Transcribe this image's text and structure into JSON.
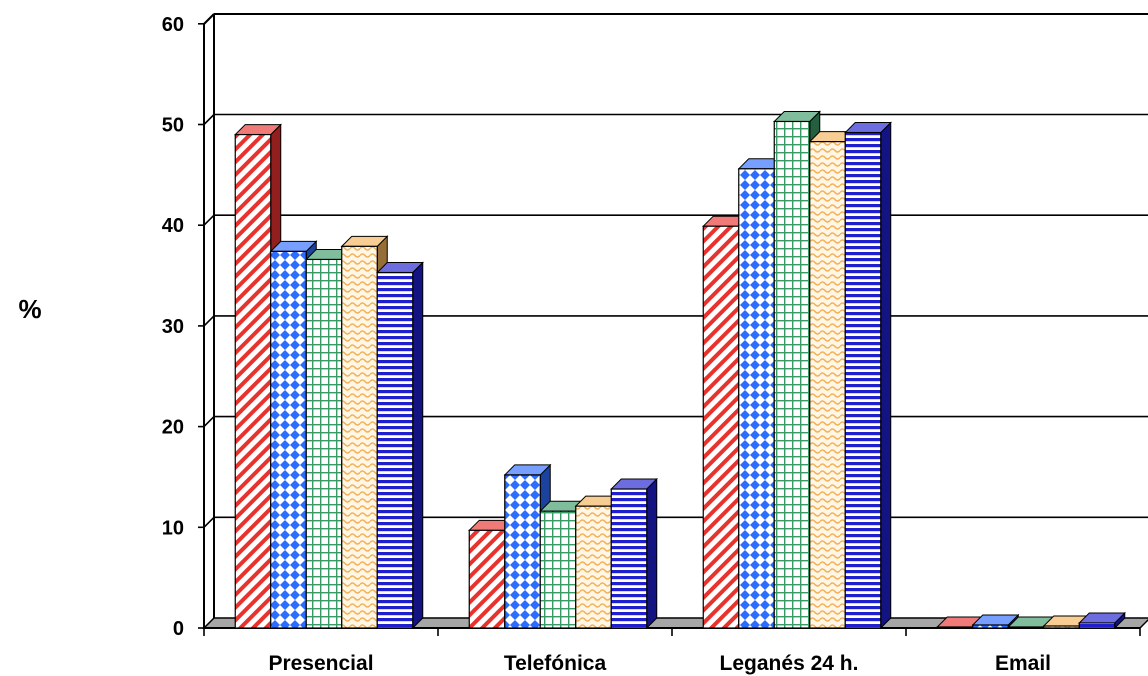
{
  "chart_data": {
    "type": "bar",
    "title": "",
    "xlabel": "",
    "ylabel": "%",
    "ylim": [
      0,
      60
    ],
    "yticks": [
      0,
      10,
      20,
      30,
      40,
      50,
      60
    ],
    "grid": true,
    "style": "3d-clustered",
    "categories": [
      "Presencial",
      "Telefónica",
      "Leganés 24 h.",
      "Email"
    ],
    "series": [
      {
        "values": [
          49,
          9.7,
          39.9,
          0.1
        ],
        "color": "#e8322e",
        "pattern": "diagonal-stripes"
      },
      {
        "values": [
          37.4,
          15.2,
          45.6,
          0.3
        ],
        "color": "#2c6cff",
        "pattern": "diamond-checks"
      },
      {
        "values": [
          36.6,
          11.6,
          50.3,
          0.1
        ],
        "color": "#3a9a66",
        "pattern": "grid"
      },
      {
        "values": [
          37.9,
          12.1,
          48.3,
          0.2
        ],
        "color": "#f2b25a",
        "pattern": "wave"
      },
      {
        "values": [
          35.3,
          13.8,
          49.2,
          0.5
        ],
        "color": "#1f1fd0",
        "pattern": "horizontal-stripes"
      }
    ]
  }
}
